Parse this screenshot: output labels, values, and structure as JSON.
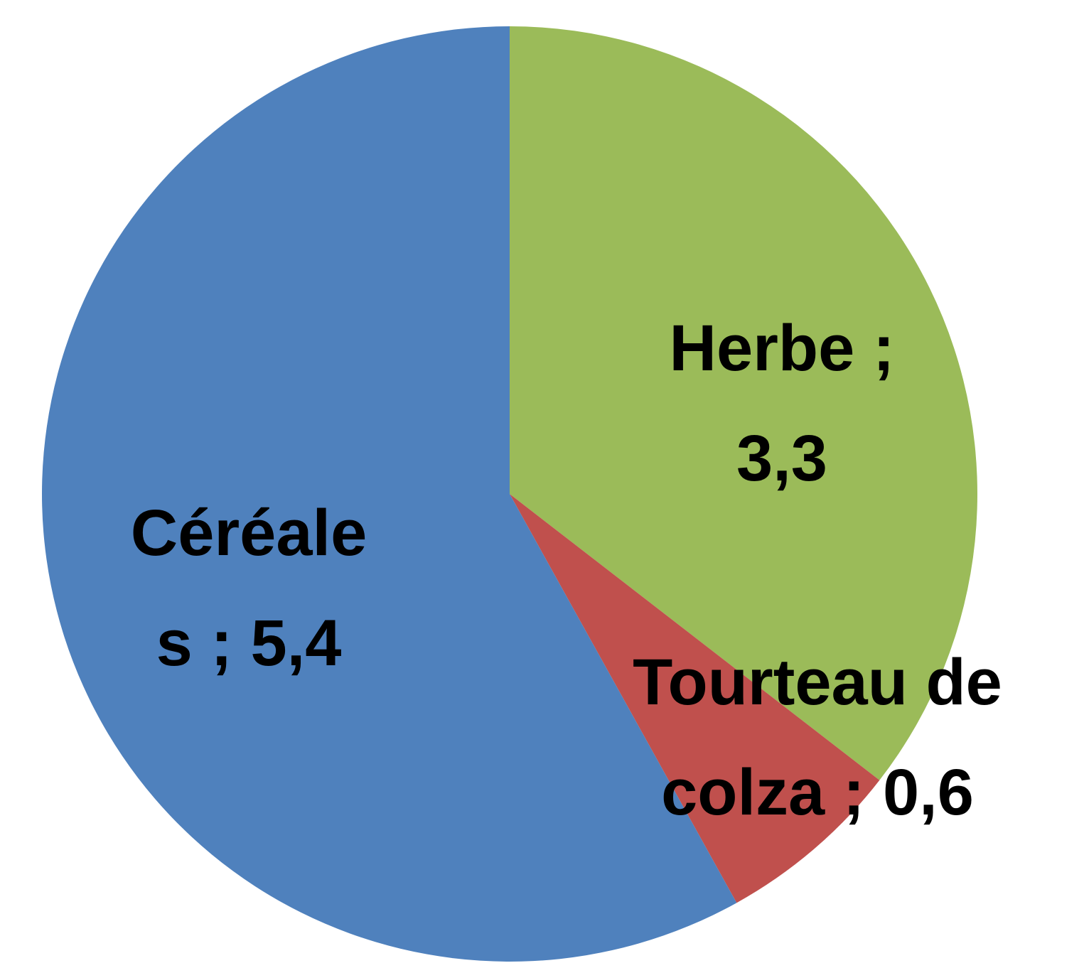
{
  "chart_data": {
    "type": "pie",
    "categories": [
      "Herbe",
      "Tourteau de colza",
      "Céréales"
    ],
    "values": [
      3.3,
      0.6,
      5.4
    ],
    "value_labels": [
      "3,3",
      "0,6",
      "5,4"
    ],
    "label_separator": ";",
    "colors": [
      "#9bbb59",
      "#c0504d",
      "#4f81bd"
    ]
  }
}
